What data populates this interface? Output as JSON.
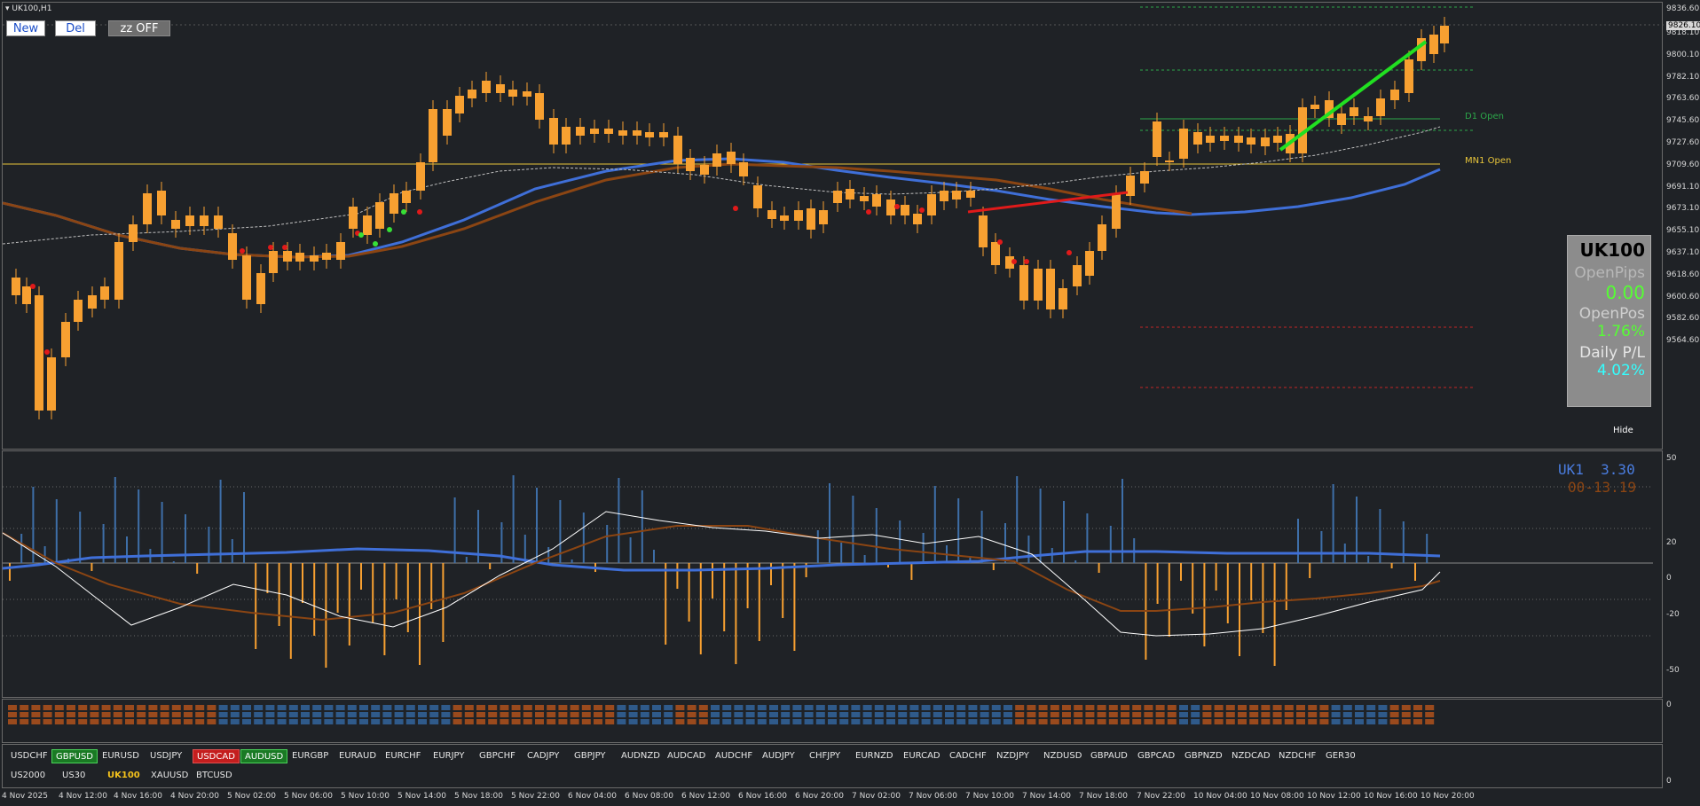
{
  "window": {
    "title": "UK100,H1",
    "menu_icon": "triangle-down-icon"
  },
  "toolbar": {
    "new_label": "New",
    "del_label": "Del",
    "zz_label": "zz OFF"
  },
  "price_axis": [
    "9836.60",
    "9826.10",
    "9818.10",
    "9800.10",
    "9782.10",
    "9763.60",
    "9745.60",
    "9727.60",
    "9709.60",
    "9691.10",
    "9673.10",
    "9655.10",
    "9637.10",
    "9618.60",
    "9600.60",
    "9582.60",
    "9564.60"
  ],
  "indicator_axis": [
    "50",
    "20",
    "0",
    "-20",
    "-50"
  ],
  "strip_axis": [
    "0"
  ],
  "sym_axis": [
    "0"
  ],
  "labels": {
    "d1_open": "D1 Open",
    "mn1_open": "MN1 Open",
    "hide": "Hide"
  },
  "info_panel": {
    "symbol": "UK100",
    "open_pips_label": "OpenPips",
    "open_pips_value": "0.00",
    "open_pos_label": "OpenPos",
    "open_pos_value": "1.76%",
    "daily_pl_label": "Daily P/L",
    "daily_pl_value": "4.02%"
  },
  "indicator_legend": {
    "line1": "UK1  3.30",
    "line2": "00-13.19"
  },
  "symbols_row1": [
    {
      "label": "USDCHF",
      "style": ""
    },
    {
      "label": "GBPUSD",
      "style": "green"
    },
    {
      "label": "EURUSD",
      "style": ""
    },
    {
      "label": "USDJPY",
      "style": ""
    },
    {
      "label": "USDCAD",
      "style": "red"
    },
    {
      "label": "AUDUSD",
      "style": "green"
    },
    {
      "label": "EURGBP",
      "style": ""
    },
    {
      "label": "EURAUD",
      "style": ""
    },
    {
      "label": "EURCHF",
      "style": ""
    },
    {
      "label": "EURJPY",
      "style": ""
    },
    {
      "label": "GBPCHF",
      "style": ""
    },
    {
      "label": "CADJPY",
      "style": ""
    },
    {
      "label": "GBPJPY",
      "style": ""
    },
    {
      "label": "AUDNZD",
      "style": ""
    },
    {
      "label": "AUDCAD",
      "style": ""
    },
    {
      "label": "AUDCHF",
      "style": ""
    },
    {
      "label": "AUDJPY",
      "style": ""
    },
    {
      "label": "CHFJPY",
      "style": ""
    },
    {
      "label": "EURNZD",
      "style": ""
    },
    {
      "label": "EURCAD",
      "style": ""
    },
    {
      "label": "CADCHF",
      "style": ""
    },
    {
      "label": "NZDJPY",
      "style": ""
    },
    {
      "label": "NZDUSD",
      "style": ""
    },
    {
      "label": "GBPAUD",
      "style": ""
    },
    {
      "label": "GBPCAD",
      "style": ""
    },
    {
      "label": "GBPNZD",
      "style": ""
    },
    {
      "label": "NZDCAD",
      "style": ""
    },
    {
      "label": "NZDCHF",
      "style": ""
    },
    {
      "label": "GER30",
      "style": ""
    }
  ],
  "symbols_row2": [
    {
      "label": "US2000",
      "style": ""
    },
    {
      "label": "US30",
      "style": ""
    },
    {
      "label": "UK100",
      "style": "active"
    },
    {
      "label": "XAUUSD",
      "style": ""
    },
    {
      "label": "BTCUSD",
      "style": ""
    }
  ],
  "time_axis": [
    "4 Nov 2025",
    "4 Nov 12:00",
    "4 Nov 16:00",
    "4 Nov 20:00",
    "5 Nov 02:00",
    "5 Nov 06:00",
    "5 Nov 10:00",
    "5 Nov 14:00",
    "5 Nov 18:00",
    "5 Nov 22:00",
    "6 Nov 04:00",
    "6 Nov 08:00",
    "6 Nov 12:00",
    "6 Nov 16:00",
    "6 Nov 20:00",
    "7 Nov 02:00",
    "7 Nov 06:00",
    "7 Nov 10:00",
    "7 Nov 14:00",
    "7 Nov 18:00",
    "7 Nov 22:00",
    "10 Nov 04:00",
    "10 Nov 08:00",
    "10 Nov 12:00",
    "10 Nov 16:00",
    "10 Nov 20:00"
  ],
  "colors": {
    "bull": "#f7a031",
    "ma_blue": "#3f6fd8",
    "ma_brown": "#8b4513",
    "indicator_orange": "#f7a031",
    "indicator_blue": "#3e6fa8",
    "trend_green": "#21e021",
    "trend_red": "#e01a1a"
  }
}
